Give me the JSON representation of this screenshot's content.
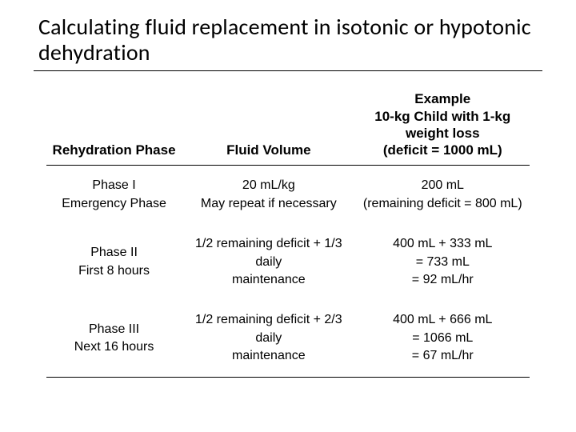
{
  "title": "Calculating fluid replacement in isotonic or hypotonic dehydration",
  "table": {
    "headers": {
      "col1": "Rehydration Phase",
      "col2": "Fluid Volume",
      "col3_l1": "Example",
      "col3_l2": "10-kg Child with 1-kg weight loss",
      "col3_l3": "(deficit = 1000 mL)"
    },
    "rows": [
      {
        "phase_l1": "Phase I",
        "phase_l2": "Emergency Phase",
        "volume_l1": "20 mL/kg",
        "volume_l2": "May repeat if necessary",
        "example_l1": "200 mL",
        "example_l2": "(remaining deficit = 800 mL)",
        "example_l3": ""
      },
      {
        "phase_l1": "Phase II",
        "phase_l2": "First 8 hours",
        "volume_l1": "1/2 remaining deficit + 1/3 daily",
        "volume_l2": "maintenance",
        "example_l1": "400 mL + 333 mL",
        "example_l2": "= 733 mL",
        "example_l3": "= 92 mL/hr"
      },
      {
        "phase_l1": "Phase III",
        "phase_l2": "Next 16 hours",
        "volume_l1": "1/2 remaining deficit + 2/3 daily",
        "volume_l2": "maintenance",
        "example_l1": "400 mL + 666 mL",
        "example_l2": "= 1066 mL",
        "example_l3": "= 67 mL/hr"
      }
    ]
  },
  "colors": {
    "text": "#000000",
    "background": "#ffffff",
    "rule": "#000000"
  }
}
